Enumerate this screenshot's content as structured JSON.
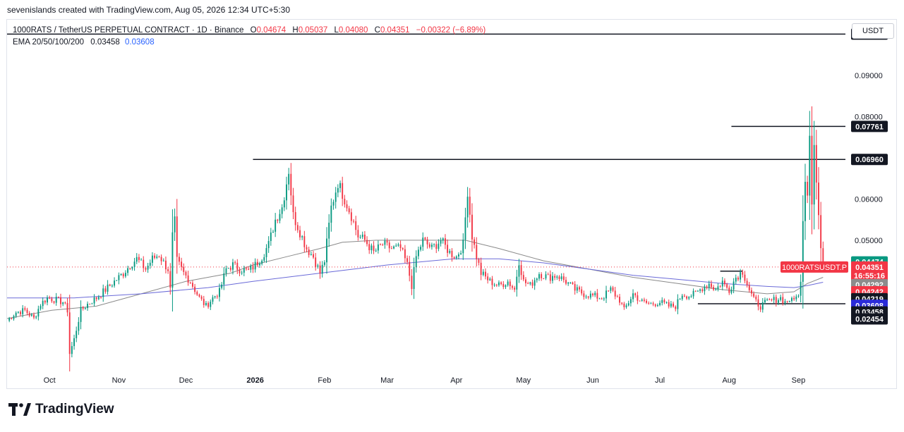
{
  "header": {
    "credit": "sevenislands created with TradingView.com, Aug 05, 2026 12:34 UTC+5:30",
    "symbol_line": "1000RATS / TetherUS PERPETUAL CONTRACT · 1D · Binance",
    "open_label": "O",
    "open": "0.04674",
    "high_label": "H",
    "high": "0.05037",
    "low_label": "L",
    "low": "0.04080",
    "close_label": "C",
    "close": "0.04351",
    "change": "−0.00322 (−6.89%)",
    "ema_label": "EMA 20/50/100/200",
    "ema_value_1": "0.03458",
    "ema_value_2": "0.03608",
    "currency_button": "USDT"
  },
  "footer": {
    "brand": "TradingView"
  },
  "colors": {
    "up": "#089981",
    "down": "#f23645",
    "ema_gray": "#8a8a8a",
    "ema_blue": "#6a6ad8",
    "text": "#131722"
  },
  "chart_data": {
    "type": "candlestick",
    "ylim": [
      0.018,
      0.1035
    ],
    "x_labels": [
      {
        "label": "Oct",
        "day": 19
      },
      {
        "label": "Nov",
        "day": 50
      },
      {
        "label": "Dec",
        "day": 80
      },
      {
        "label": "2026",
        "day": 111,
        "bold": true
      },
      {
        "label": "Feb",
        "day": 142
      },
      {
        "label": "Mar",
        "day": 170
      },
      {
        "label": "Apr",
        "day": 201
      },
      {
        "label": "May",
        "day": 231
      },
      {
        "label": "Jun",
        "day": 262
      },
      {
        "label": "Jul",
        "day": 292
      },
      {
        "label": "Aug",
        "day": 323
      },
      {
        "label": "Sep",
        "day": 354
      }
    ],
    "y_ticks": [
      "0.05000",
      "0.06000",
      "0.08000",
      "0.09000"
    ],
    "horizontal_levels": [
      {
        "price": 0.10002,
        "from_day": 0,
        "label": "0.10002"
      },
      {
        "price": 0.07761,
        "from_day": 324,
        "label": "0.07761"
      },
      {
        "price": 0.0696,
        "from_day": 110,
        "label": "0.06960"
      },
      {
        "price": 0.0425,
        "from_day": 319,
        "to_day": 329
      },
      {
        "price": 0.03458,
        "from_day": 309,
        "label": "0.03458"
      }
    ],
    "price_tags": [
      {
        "text": "0.04474",
        "bg": "#089981",
        "fg": "#ffffff",
        "price": 0.04474
      },
      {
        "text": "0.04351",
        "bg": "#f23645",
        "fg": "#ffffff",
        "price": 0.04351
      },
      {
        "text": "16:55:16",
        "bg": "#f23645",
        "fg": "#ffffff",
        "price": 0.0414
      },
      {
        "text": "0.04292",
        "bg": "#8c8c8c",
        "fg": "#ffffff",
        "price": 0.0392
      },
      {
        "text": "0.04242",
        "bg": "#f23645",
        "fg": "#ffffff",
        "price": 0.0375
      },
      {
        "text": "0.04219",
        "bg": "#131722",
        "fg": "#ffffff",
        "price": 0.0358
      },
      {
        "text": "0.03608",
        "bg": "#2b2bd9",
        "fg": "#ffffff",
        "price": 0.0342
      },
      {
        "text": "0.03458",
        "bg": "#131722",
        "fg": "#ffffff",
        "price": 0.0326
      },
      {
        "text": "0.02454",
        "bg": "#131722",
        "fg": "#ffffff",
        "price": 0.0309
      }
    ],
    "symbol_tag": {
      "text": "1000RATSUSDT.P",
      "price": 0.04351
    },
    "key_points": [
      [
        0,
        0.0305
      ],
      [
        4,
        0.0325
      ],
      [
        8,
        0.033
      ],
      [
        12,
        0.031
      ],
      [
        15,
        0.0345
      ],
      [
        18,
        0.036
      ],
      [
        22,
        0.0355
      ],
      [
        25,
        0.035
      ],
      [
        27,
        0.033
      ],
      [
        28,
        0.0225
      ],
      [
        30,
        0.026
      ],
      [
        33,
        0.033
      ],
      [
        36,
        0.0345
      ],
      [
        40,
        0.036
      ],
      [
        44,
        0.038
      ],
      [
        48,
        0.04
      ],
      [
        52,
        0.042
      ],
      [
        55,
        0.044
      ],
      [
        58,
        0.0455
      ],
      [
        62,
        0.043
      ],
      [
        65,
        0.0455
      ],
      [
        68,
        0.0465
      ],
      [
        70,
        0.0445
      ],
      [
        72,
        0.043
      ],
      [
        73,
        0.038
      ],
      [
        74,
        0.051
      ],
      [
        75,
        0.0545
      ],
      [
        76,
        0.045
      ],
      [
        79,
        0.042
      ],
      [
        82,
        0.04
      ],
      [
        86,
        0.036
      ],
      [
        89,
        0.034
      ],
      [
        92,
        0.036
      ],
      [
        95,
        0.0375
      ],
      [
        98,
        0.043
      ],
      [
        101,
        0.044
      ],
      [
        104,
        0.043
      ],
      [
        108,
        0.0425
      ],
      [
        111,
        0.044
      ],
      [
        114,
        0.046
      ],
      [
        117,
        0.049
      ],
      [
        120,
        0.055
      ],
      [
        123,
        0.058
      ],
      [
        126,
        0.067
      ],
      [
        128,
        0.056
      ],
      [
        131,
        0.052
      ],
      [
        134,
        0.048
      ],
      [
        137,
        0.046
      ],
      [
        140,
        0.042
      ],
      [
        142,
        0.045
      ],
      [
        145,
        0.058
      ],
      [
        148,
        0.064
      ],
      [
        151,
        0.06
      ],
      [
        154,
        0.056
      ],
      [
        157,
        0.051
      ],
      [
        160,
        0.05
      ],
      [
        164,
        0.047
      ],
      [
        168,
        0.049
      ],
      [
        172,
        0.048
      ],
      [
        176,
        0.048
      ],
      [
        179,
        0.044
      ],
      [
        181,
        0.039
      ],
      [
        183,
        0.046
      ],
      [
        186,
        0.05
      ],
      [
        190,
        0.048
      ],
      [
        194,
        0.05
      ],
      [
        198,
        0.047
      ],
      [
        201,
        0.046
      ],
      [
        204,
        0.049
      ],
      [
        206,
        0.062
      ],
      [
        208,
        0.051
      ],
      [
        210,
        0.046
      ],
      [
        212,
        0.042
      ],
      [
        216,
        0.04
      ],
      [
        220,
        0.039
      ],
      [
        224,
        0.04
      ],
      [
        227,
        0.038
      ],
      [
        229,
        0.045
      ],
      [
        231,
        0.04
      ],
      [
        234,
        0.039
      ],
      [
        238,
        0.042
      ],
      [
        242,
        0.041
      ],
      [
        246,
        0.0415
      ],
      [
        250,
        0.04
      ],
      [
        254,
        0.038
      ],
      [
        258,
        0.037
      ],
      [
        262,
        0.0365
      ],
      [
        266,
        0.036
      ],
      [
        270,
        0.038
      ],
      [
        274,
        0.0355
      ],
      [
        276,
        0.033
      ],
      [
        280,
        0.037
      ],
      [
        284,
        0.035
      ],
      [
        288,
        0.0345
      ],
      [
        292,
        0.035
      ],
      [
        296,
        0.034
      ],
      [
        299,
        0.034
      ],
      [
        302,
        0.037
      ],
      [
        305,
        0.0365
      ],
      [
        308,
        0.037
      ],
      [
        311,
        0.0385
      ],
      [
        314,
        0.0395
      ],
      [
        317,
        0.038
      ],
      [
        320,
        0.04
      ],
      [
        321,
        0.039
      ],
      [
        323,
        0.038
      ],
      [
        326,
        0.041
      ],
      [
        329,
        0.0425
      ],
      [
        332,
        0.038
      ],
      [
        334,
        0.0355
      ],
      [
        337,
        0.034
      ],
      [
        340,
        0.035
      ],
      [
        343,
        0.0355
      ],
      [
        346,
        0.036
      ],
      [
        348,
        0.035
      ],
      [
        350,
        0.0356
      ],
      [
        351,
        0.0352
      ],
      [
        352,
        0.0355
      ],
      [
        353,
        0.037
      ],
      [
        354,
        0.0362
      ],
      [
        355,
        0.0395
      ],
      [
        356,
        0.056
      ],
      [
        357,
        0.065
      ],
      [
        358,
        0.062
      ],
      [
        359,
        0.076
      ],
      [
        360,
        0.06
      ],
      [
        361,
        0.074
      ],
      [
        362,
        0.064
      ],
      [
        363,
        0.056
      ],
      [
        364,
        0.048
      ],
      [
        365,
        0.0435
      ]
    ],
    "ema_gray": [
      [
        0,
        0.031
      ],
      [
        20,
        0.033
      ],
      [
        40,
        0.034
      ],
      [
        60,
        0.037
      ],
      [
        80,
        0.04
      ],
      [
        100,
        0.042
      ],
      [
        110,
        0.044
      ],
      [
        125,
        0.046
      ],
      [
        140,
        0.048
      ],
      [
        150,
        0.0495
      ],
      [
        165,
        0.05
      ],
      [
        185,
        0.05
      ],
      [
        205,
        0.05
      ],
      [
        220,
        0.048
      ],
      [
        240,
        0.045
      ],
      [
        260,
        0.043
      ],
      [
        280,
        0.041
      ],
      [
        300,
        0.0395
      ],
      [
        320,
        0.038
      ],
      [
        340,
        0.037
      ],
      [
        352,
        0.0375
      ],
      [
        358,
        0.0395
      ],
      [
        365,
        0.041
      ]
    ],
    "ema_blue": [
      [
        0,
        0.036
      ],
      [
        30,
        0.036
      ],
      [
        60,
        0.037
      ],
      [
        90,
        0.0385
      ],
      [
        110,
        0.04
      ],
      [
        140,
        0.042
      ],
      [
        170,
        0.044
      ],
      [
        200,
        0.0455
      ],
      [
        220,
        0.0455
      ],
      [
        240,
        0.0445
      ],
      [
        260,
        0.043
      ],
      [
        280,
        0.0415
      ],
      [
        300,
        0.0405
      ],
      [
        320,
        0.0395
      ],
      [
        340,
        0.0388
      ],
      [
        352,
        0.0385
      ],
      [
        358,
        0.039
      ],
      [
        365,
        0.0398
      ]
    ]
  }
}
